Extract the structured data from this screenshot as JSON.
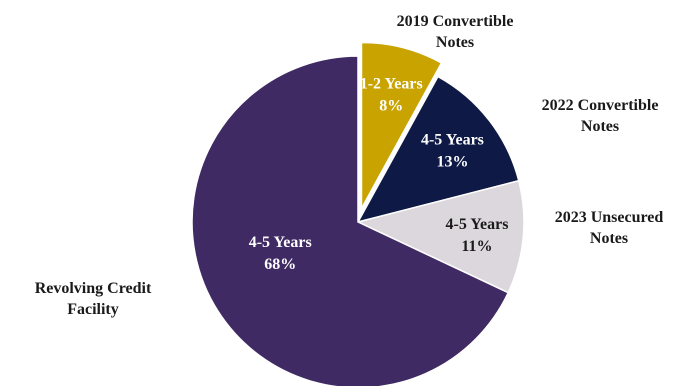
{
  "chart_data": {
    "type": "pie",
    "slices": [
      {
        "category": "2019 Convertible Notes",
        "category_lines": [
          "2019 Convertible",
          "Notes"
        ],
        "term": "1-2 Years",
        "value": 8,
        "value_label": "8%",
        "color": "#C9A300",
        "text_color": "#ffffff"
      },
      {
        "category": "2022 Convertible Notes",
        "category_lines": [
          "2022 Convertible",
          "Notes"
        ],
        "term": "4-5 Years",
        "value": 13,
        "value_label": "13%",
        "color": "#0E1A45",
        "text_color": "#ffffff"
      },
      {
        "category": "2023 Unsecured Notes",
        "category_lines": [
          "2023 Unsecured",
          "Notes"
        ],
        "term": "4-5 Years",
        "value": 11,
        "value_label": "11%",
        "color": "#DCD7DD",
        "text_color": "#1a1a1a"
      },
      {
        "category": "Revolving Credit Facility",
        "category_lines": [
          "Revolving Credit",
          "Facility"
        ],
        "term": "4-5 Years",
        "value": 68,
        "value_label": "68%",
        "color": "#3F2A63",
        "text_color": "#ffffff"
      }
    ]
  }
}
